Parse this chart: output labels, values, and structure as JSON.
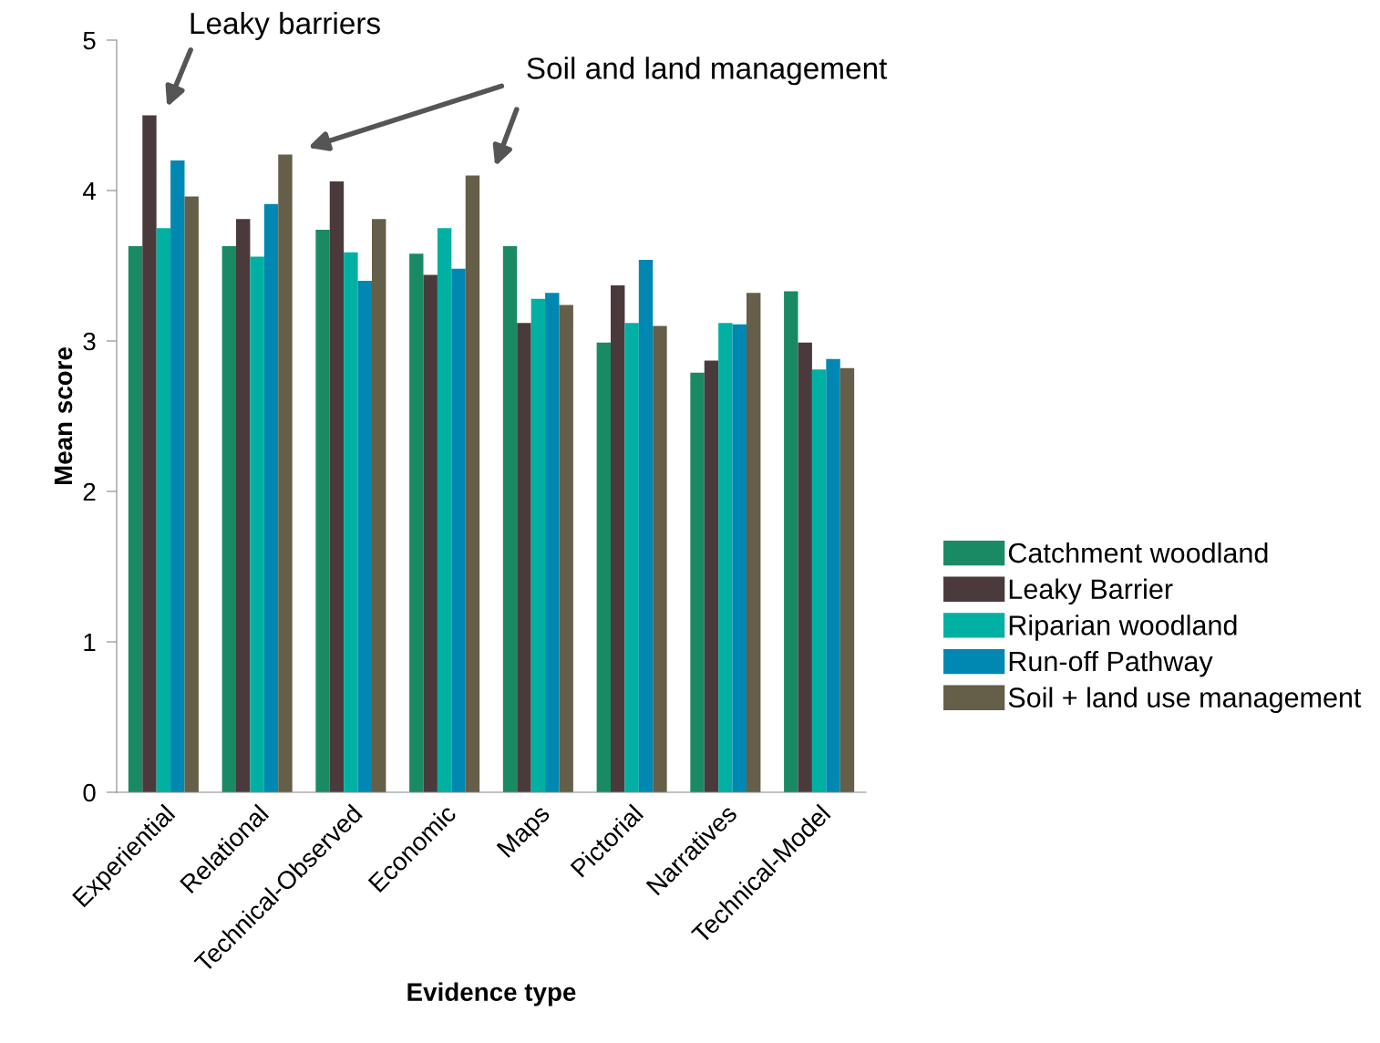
{
  "chart_data": {
    "type": "bar",
    "xlabel": "Evidence type",
    "ylabel": "Mean score",
    "categories": [
      "Experiential",
      "Relational",
      "Technical-Observed",
      "Economic",
      "Maps",
      "Pictorial",
      "Narratives",
      "Technical-Model"
    ],
    "series": [
      {
        "name": "Catchment woodland",
        "color": "#1a8a64",
        "values": [
          3.63,
          3.63,
          3.74,
          3.58,
          3.63,
          2.99,
          2.79,
          3.33
        ]
      },
      {
        "name": "Leaky Barrier",
        "color": "#4a3a3c",
        "values": [
          4.5,
          3.81,
          4.06,
          3.44,
          3.12,
          3.37,
          2.87,
          2.99
        ]
      },
      {
        "name": "Riparian woodland",
        "color": "#00b0a2",
        "values": [
          3.75,
          3.56,
          3.59,
          3.75,
          3.28,
          3.12,
          3.12,
          2.81
        ]
      },
      {
        "name": "Run-off Pathway",
        "color": "#0088b2",
        "values": [
          4.2,
          3.91,
          3.4,
          3.48,
          3.32,
          3.54,
          3.11,
          2.88
        ]
      },
      {
        "name": "Soil + land use management",
        "color": "#655e48",
        "values": [
          3.96,
          4.24,
          3.81,
          4.1,
          3.24,
          3.1,
          3.32,
          2.82
        ]
      }
    ],
    "ylim": [
      0,
      5
    ],
    "yticks": [
      0,
      1,
      2,
      3,
      4,
      5
    ],
    "grid": false,
    "legend": "right",
    "annotations": [
      "Leaky barriers",
      "Soil and land management"
    ]
  }
}
